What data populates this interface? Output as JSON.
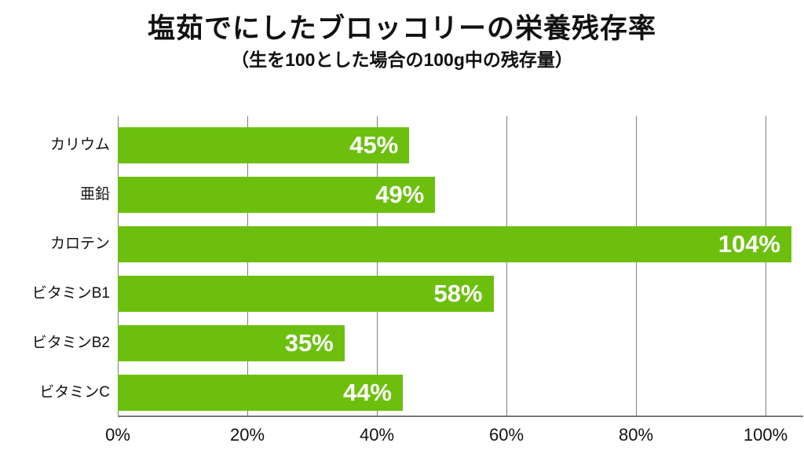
{
  "chart_data": {
    "type": "bar",
    "orientation": "horizontal",
    "title": "塩茹でにしたブロッコリーの栄養残存率",
    "subtitle": "（生を100とした場合の100g中の残存量）",
    "categories": [
      "カリウム",
      "亜鉛",
      "カロテン",
      "ビタミンB1",
      "ビタミンB2",
      "ビタミンC"
    ],
    "values": [
      45,
      49,
      104,
      58,
      35,
      44
    ],
    "value_labels": [
      "45%",
      "49%",
      "104%",
      "58%",
      "35%",
      "44%"
    ],
    "x_ticks": [
      0,
      20,
      40,
      60,
      80,
      100
    ],
    "x_tick_labels": [
      "0%",
      "20%",
      "40%",
      "60%",
      "80%",
      "100%"
    ],
    "xlim": [
      0,
      105.8
    ],
    "grid": true,
    "legend": false,
    "colors": {
      "bar": "#6cc00d",
      "gridline": "#7f7f7f",
      "axis": "#7a7a7a",
      "text": "#111111",
      "value_text": "#ffffff",
      "background": "#ffffff"
    }
  }
}
